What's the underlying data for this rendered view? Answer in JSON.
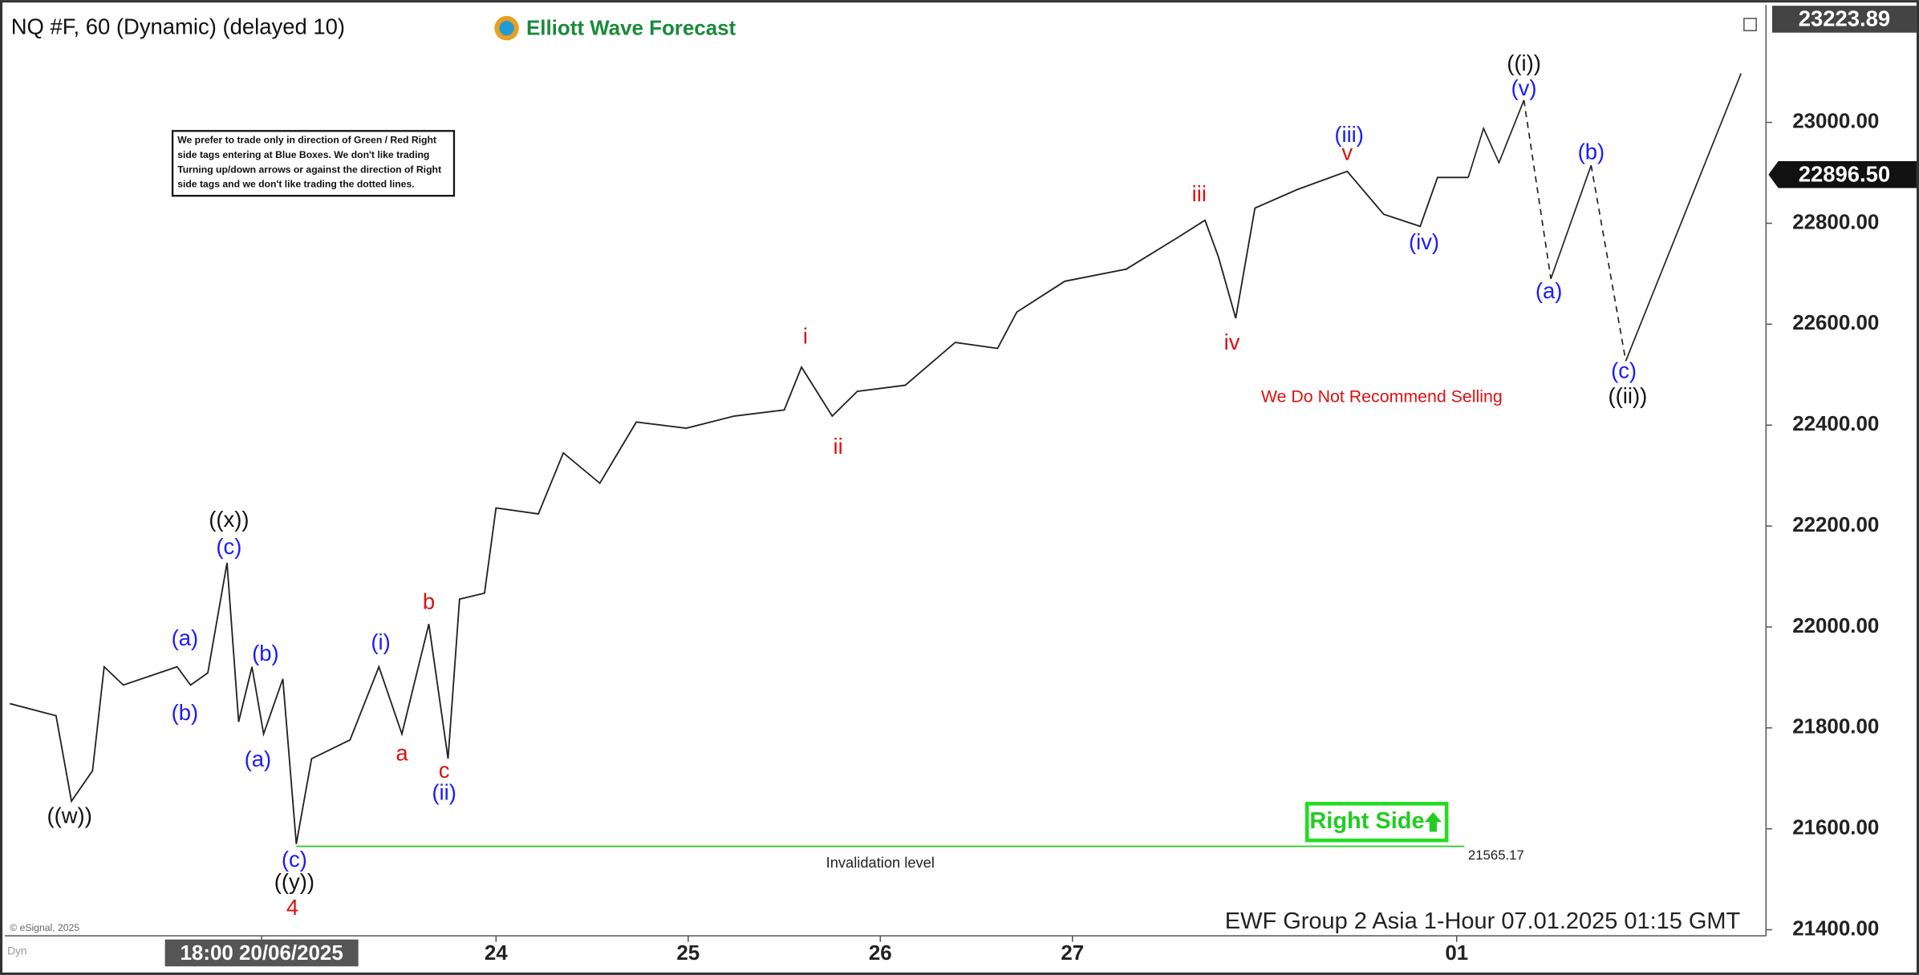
{
  "title": "NQ #F, 60 (Dynamic) (delayed 10)",
  "logo": "Elliott Wave Forecast",
  "note_lines": [
    "We prefer to trade only in direction of Green / Red Right",
    "side tags entering at Blue Boxes. We don't like trading",
    "Turning up/down arrows or against the direction of Right",
    "side tags and we don't like trading the dotted lines."
  ],
  "warning": "We Do Not Recommend Selling",
  "right_side": "Right Side",
  "footer": "EWF Group 2 Asia 1-Hour 07.01.2025 01:15 GMT",
  "copyright": "© eSignal, 2025",
  "corner": "Dyn",
  "chart_data": {
    "type": "line",
    "color": "#222222",
    "x": [
      -1.53,
      -1.29,
      -1.21,
      -1.1,
      -1.04,
      -0.94,
      -0.66,
      -0.59,
      -0.5,
      -0.4,
      -0.34,
      -0.27,
      -0.21,
      -0.11,
      -0.04,
      0.04,
      0.24,
      0.39,
      0.51,
      0.65,
      0.75,
      0.81,
      0.94,
      1.0,
      1.22,
      1.35,
      1.54,
      1.73,
      1.99,
      2.24,
      2.5,
      2.59,
      2.75,
      2.88,
      3.13,
      3.39,
      3.61,
      3.71,
      3.96,
      4.28,
      4.54,
      4.69,
      4.76,
      4.85,
      4.95,
      5.17,
      5.43,
      5.62,
      5.81,
      5.9,
      6.06
    ],
    "values": [
      21848,
      21824,
      21655,
      21715,
      21921,
      21885,
      21921,
      21885,
      21909,
      22127,
      21812,
      21921,
      21788,
      21897,
      21570,
      21739,
      21776,
      21921,
      21788,
      22006,
      21739,
      22055,
      22067,
      22236,
      22224,
      22345,
      22285,
      22406,
      22394,
      22418,
      22430,
      22515,
      22418,
      22467,
      22479,
      22564,
      22552,
      22624,
      22685,
      22709,
      22770,
      22806,
      22733,
      22612,
      22830,
      22867,
      22903,
      22818,
      22794,
      22891,
      22891
    ],
    "projection": [
      {
        "x": [
          6.06,
          6.14,
          6.22,
          6.35
        ],
        "values": [
          22891,
          22988,
          22920,
          23044
        ],
        "dashed": false
      },
      {
        "x": [
          6.35,
          6.49
        ],
        "values": [
          23044,
          22690
        ],
        "dashed": true
      },
      {
        "x": [
          6.49,
          6.7
        ],
        "values": [
          22690,
          22915
        ],
        "dashed": false
      },
      {
        "x": [
          6.7,
          6.88
        ],
        "values": [
          22915,
          22527
        ],
        "dashed": true
      },
      {
        "x": [
          6.88,
          7.48
        ],
        "values": [
          22527,
          23097
        ],
        "dashed": false
      }
    ],
    "xlim": [
      -1.55,
      7.61
    ],
    "xticks": [
      {
        "value": -0.22,
        "label": "18:00 20/06/2025"
      },
      {
        "value": 1,
        "label": "24"
      },
      {
        "value": 2,
        "label": "25"
      },
      {
        "value": 3,
        "label": "26"
      },
      {
        "value": 4,
        "label": "27"
      },
      {
        "value": 6,
        "label": "01"
      }
    ],
    "ylim": [
      21388,
      23223
    ],
    "yticks": [
      {
        "value": 21400,
        "label": "21400.00"
      },
      {
        "value": 21600,
        "label": "21600.00"
      },
      {
        "value": 21800,
        "label": "21800.00"
      },
      {
        "value": 22000,
        "label": "22000.00"
      },
      {
        "value": 22200,
        "label": "22200.00"
      },
      {
        "value": 22400,
        "label": "22400.00"
      },
      {
        "value": 22600,
        "label": "22600.00"
      },
      {
        "value": 22800,
        "label": "22800.00"
      },
      {
        "value": 23000,
        "label": "23000.00"
      }
    ],
    "last_price": {
      "value": 22896.5,
      "label": "22896.50"
    },
    "high_price": 23223.89,
    "invalidation": {
      "value": 21565.17,
      "x": [
        -0.04,
        6.04
      ],
      "text": "Invalidation level",
      "color": "#33cc33"
    },
    "annotations": [
      {
        "text": "((w))",
        "x": -1.22,
        "y": 21623,
        "color": "#111111"
      },
      {
        "text": "((x))",
        "x": -0.39,
        "y": 22210,
        "color": "#111111"
      },
      {
        "text": "(c)",
        "x": -0.39,
        "y": 22156,
        "color": "#1a1aff"
      },
      {
        "text": "(a)",
        "x": -0.62,
        "y": 21975,
        "color": "#1a1aff"
      },
      {
        "text": "(b)",
        "x": -0.62,
        "y": 21827,
        "color": "#1a1aff"
      },
      {
        "text": "(b)",
        "x": -0.2,
        "y": 21945,
        "color": "#1a1aff"
      },
      {
        "text": "(a)",
        "x": -0.24,
        "y": 21735,
        "color": "#1a1aff"
      },
      {
        "text": "(c)",
        "x": -0.05,
        "y": 21536,
        "color": "#1a1aff"
      },
      {
        "text": "((y))",
        "x": -0.05,
        "y": 21492,
        "color": "#111111"
      },
      {
        "text": "4",
        "x": -0.06,
        "y": 21441,
        "color": "#dd1111"
      },
      {
        "text": "(i)",
        "x": 0.4,
        "y": 21967,
        "color": "#1a1aff"
      },
      {
        "text": "a",
        "x": 0.51,
        "y": 21747,
        "color": "#dd1111"
      },
      {
        "text": "b",
        "x": 0.65,
        "y": 22047,
        "color": "#dd1111"
      },
      {
        "text": "c",
        "x": 0.73,
        "y": 21713,
        "color": "#dd1111"
      },
      {
        "text": "(ii)",
        "x": 0.73,
        "y": 21669,
        "color": "#1a1aff"
      },
      {
        "text": "i",
        "x": 2.61,
        "y": 22573,
        "color": "#dd1111"
      },
      {
        "text": "ii",
        "x": 2.78,
        "y": 22355,
        "color": "#dd1111"
      },
      {
        "text": "iii",
        "x": 4.66,
        "y": 22855,
        "color": "#dd1111"
      },
      {
        "text": "iv",
        "x": 4.83,
        "y": 22561,
        "color": "#dd1111"
      },
      {
        "text": "(iii)",
        "x": 5.44,
        "y": 22973,
        "color": "#1a1aff"
      },
      {
        "text": "v",
        "x": 5.43,
        "y": 22937,
        "color": "#dd1111"
      },
      {
        "text": "(iv)",
        "x": 5.83,
        "y": 22760,
        "color": "#1a1aff"
      },
      {
        "text": "((i))",
        "x": 6.35,
        "y": 23114,
        "color": "#111111"
      },
      {
        "text": "(v)",
        "x": 6.35,
        "y": 23065,
        "color": "#1a1aff"
      },
      {
        "text": "(a)",
        "x": 6.48,
        "y": 22663,
        "color": "#1a1aff"
      },
      {
        "text": "(b)",
        "x": 6.7,
        "y": 22939,
        "color": "#1a1aff"
      },
      {
        "text": "(c)",
        "x": 6.87,
        "y": 22505,
        "color": "#1a1aff"
      },
      {
        "text": "((ii))",
        "x": 6.89,
        "y": 22455,
        "color": "#111111"
      }
    ]
  }
}
